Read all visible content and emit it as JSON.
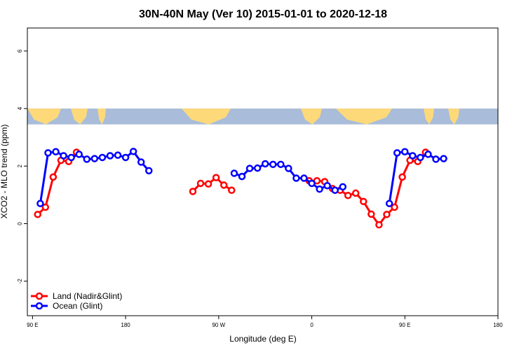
{
  "chart_data": {
    "type": "line",
    "title": "30N-40N May (Ver 10)   2015-01-01 to 2020-12-18",
    "xlabel": "Longitude (deg E)",
    "ylabel": "XCO2 - MLO trend (ppm)",
    "xlim": [
      85,
      540
    ],
    "ylim": [
      -3.2,
      6.8
    ],
    "x_ticks": [
      {
        "value": 90,
        "label": "90 E"
      },
      {
        "value": 180,
        "label": "180"
      },
      {
        "value": 270,
        "label": "90 W"
      },
      {
        "value": 360,
        "label": "0"
      },
      {
        "value": 450,
        "label": "90 E"
      },
      {
        "value": 540,
        "label": "180"
      }
    ],
    "y_ticks": [
      {
        "value": -2,
        "label": "-2"
      },
      {
        "value": 0,
        "label": "0"
      },
      {
        "value": 2,
        "label": "2"
      },
      {
        "value": 4,
        "label": "4"
      },
      {
        "value": 6,
        "label": "6"
      }
    ],
    "map_band": {
      "ymin": 3.45,
      "ymax": 4.0,
      "ocean_color": "#a9bcd9",
      "land_color": "#fdd97a"
    },
    "legend": {
      "position": "bottom-left"
    },
    "series": [
      {
        "name": "Land (Nadir&Glint)",
        "color": "#ff0000",
        "segments": [
          [
            [
              95,
              0.32
            ],
            [
              102.5,
              0.57
            ],
            [
              110,
              1.62
            ],
            [
              117.5,
              2.2
            ],
            [
              125,
              2.16
            ],
            [
              132.5,
              2.48
            ]
          ],
          [
            [
              245,
              1.12
            ],
            [
              252.5,
              1.4
            ],
            [
              260,
              1.38
            ],
            [
              267.5,
              1.6
            ],
            [
              275,
              1.34
            ],
            [
              282.5,
              1.16
            ]
          ],
          [
            [
              357.5,
              1.49
            ],
            [
              365,
              1.49
            ],
            [
              372.5,
              1.46
            ],
            [
              380,
              1.22
            ],
            [
              387.5,
              1.16
            ],
            [
              395,
              0.98
            ],
            [
              402.5,
              1.06
            ],
            [
              410,
              0.77
            ],
            [
              417.5,
              0.33
            ],
            [
              425,
              -0.04
            ],
            [
              432.5,
              0.32
            ],
            [
              440,
              0.57
            ],
            [
              447.5,
              1.62
            ],
            [
              455,
              2.2
            ],
            [
              462.5,
              2.16
            ],
            [
              470,
              2.48
            ]
          ]
        ]
      },
      {
        "name": "Ocean (Glint)",
        "color": "#0000ff",
        "segments": [
          [
            [
              97.5,
              0.7
            ],
            [
              105,
              2.46
            ],
            [
              112.5,
              2.5
            ],
            [
              120,
              2.36
            ],
            [
              127.5,
              2.3
            ],
            [
              135,
              2.41
            ],
            [
              142.5,
              2.24
            ],
            [
              150,
              2.26
            ],
            [
              157.5,
              2.3
            ],
            [
              165,
              2.36
            ],
            [
              172.5,
              2.38
            ],
            [
              180,
              2.3
            ],
            [
              187.5,
              2.51
            ],
            [
              195,
              2.14
            ],
            [
              202.5,
              1.84
            ]
          ],
          [
            [
              285,
              1.75
            ],
            [
              292.5,
              1.64
            ],
            [
              300,
              1.92
            ],
            [
              307.5,
              1.93
            ],
            [
              315,
              2.08
            ],
            [
              322.5,
              2.06
            ],
            [
              330,
              2.06
            ],
            [
              337.5,
              1.92
            ],
            [
              345,
              1.58
            ],
            [
              352.5,
              1.58
            ],
            [
              360,
              1.4
            ],
            [
              367.5,
              1.2
            ],
            [
              375,
              1.32
            ],
            [
              382.5,
              1.16
            ],
            [
              390,
              1.28
            ]
          ],
          [
            [
              435,
              0.7
            ],
            [
              442.5,
              2.46
            ],
            [
              450,
              2.5
            ],
            [
              457.5,
              2.36
            ],
            [
              465,
              2.3
            ],
            [
              472.5,
              2.41
            ],
            [
              480,
              2.24
            ],
            [
              487.5,
              2.26
            ]
          ]
        ]
      }
    ]
  }
}
